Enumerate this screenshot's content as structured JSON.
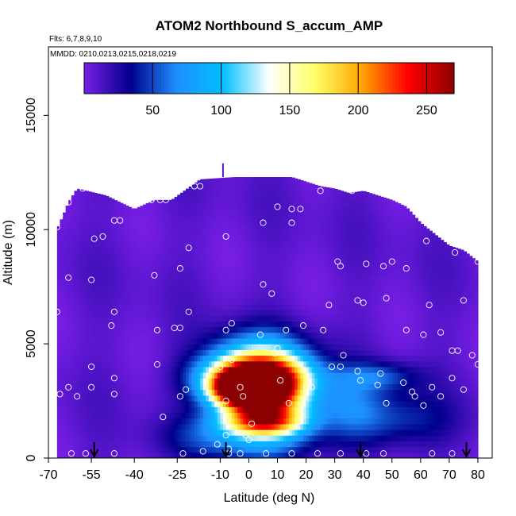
{
  "chart_data": {
    "type": "heatmap",
    "title": "ATOM2 Northbound S_accum_AMP",
    "flights_label": "Flts: 6,7,8,9,10",
    "dates_label": "MMDD: 0210,0213,0215,0218,0219",
    "xlabel": "Latitude (deg N)",
    "ylabel": "Altitude (m)",
    "xlim": [
      -70,
      85
    ],
    "ylim": [
      0,
      18000
    ],
    "x_ticks": [
      "-70",
      "-55",
      "-40",
      "-25",
      "-10",
      "0",
      "10",
      "20",
      "30",
      "40",
      "50",
      "60",
      "70",
      "80"
    ],
    "y_ticks": [
      "0",
      "5000",
      "10000",
      "15000"
    ],
    "colorbar": {
      "range": [
        0,
        270
      ],
      "ticks": [
        "50",
        "100",
        "150",
        "200",
        "250"
      ],
      "colors": [
        "#7a1ee6",
        "#00008b",
        "#1e90ff",
        "#00bfff",
        "#ffffff",
        "#ffff66",
        "#ffa500",
        "#ff0000",
        "#8b0000"
      ]
    },
    "curtain_top": [
      [
        -67,
        10000
      ],
      [
        -63,
        11200
      ],
      [
        -60,
        11800
      ],
      [
        -50,
        11500
      ],
      [
        -40,
        10900
      ],
      [
        -33,
        11300
      ],
      [
        -27,
        11300
      ],
      [
        -17,
        12200
      ],
      [
        -5,
        12300
      ],
      [
        5,
        12300
      ],
      [
        15,
        12300
      ],
      [
        25,
        11900
      ],
      [
        30,
        11800
      ],
      [
        35,
        11600
      ],
      [
        40,
        11700
      ],
      [
        50,
        11300
      ],
      [
        55,
        11000
      ],
      [
        60,
        10300
      ],
      [
        65,
        9800
      ],
      [
        70,
        9300
      ],
      [
        75,
        9100
      ],
      [
        80,
        8600
      ],
      [
        80,
        8300
      ]
    ],
    "hotspots": [
      {
        "lat": 0,
        "alt": 3200,
        "value": 258,
        "slat": 5,
        "salt": 350
      },
      {
        "lat": -1,
        "alt": 3000,
        "value": 225,
        "slat": 8,
        "salt": 500
      },
      {
        "lat": 2,
        "alt": 3600,
        "value": 175,
        "slat": 12,
        "salt": 600
      },
      {
        "lat": 4,
        "alt": 2500,
        "value": 140,
        "slat": 11,
        "salt": 800
      },
      {
        "lat": 5,
        "alt": 1600,
        "value": 110,
        "slat": 10,
        "salt": 400
      },
      {
        "lat": 2,
        "alt": 4300,
        "value": 95,
        "slat": 12,
        "salt": 900
      },
      {
        "lat": -3,
        "alt": 900,
        "value": 60,
        "slat": 16,
        "salt": 700
      },
      {
        "lat": 10,
        "alt": 2800,
        "value": 80,
        "slat": 10,
        "salt": 1300
      },
      {
        "lat": 45,
        "alt": 3600,
        "value": 42,
        "slat": 10,
        "salt": 450
      },
      {
        "lat": 50,
        "alt": 1700,
        "value": 40,
        "slat": 14,
        "salt": 900
      },
      {
        "lat": 35,
        "alt": 2400,
        "value": 35,
        "slat": 8,
        "salt": 1000
      }
    ],
    "sample_points": [
      [
        -67,
        10100
      ],
      [
        -66,
        10600
      ],
      [
        -63,
        11200
      ],
      [
        -58,
        11800
      ],
      [
        -54,
        9600
      ],
      [
        -51,
        9700
      ],
      [
        -47,
        10400
      ],
      [
        -45,
        10400
      ],
      [
        -37,
        11300
      ],
      [
        -34,
        11300
      ],
      [
        -31,
        11300
      ],
      [
        -29,
        11300
      ],
      [
        -21,
        9200
      ],
      [
        -19,
        11900
      ],
      [
        -17,
        11900
      ],
      [
        -8,
        9700
      ],
      [
        5,
        10300
      ],
      [
        10,
        11000
      ],
      [
        15,
        10300
      ],
      [
        15,
        10900
      ],
      [
        18,
        10900
      ],
      [
        25,
        11700
      ],
      [
        36,
        11700
      ],
      [
        50,
        8600
      ],
      [
        55,
        8300
      ],
      [
        62,
        9500
      ],
      [
        72,
        9000
      ],
      [
        80,
        8600
      ],
      [
        -63,
        7900
      ],
      [
        -55,
        7800
      ],
      [
        -47,
        6400
      ],
      [
        -48,
        5800
      ],
      [
        -32,
        5600
      ],
      [
        -33,
        8000
      ],
      [
        -24,
        8300
      ],
      [
        -24,
        5700
      ],
      [
        -21,
        6400
      ],
      [
        -8,
        5600
      ],
      [
        -6,
        5900
      ],
      [
        4,
        5400
      ],
      [
        5,
        7600
      ],
      [
        8,
        7200
      ],
      [
        10,
        4800
      ],
      [
        13,
        5600
      ],
      [
        19,
        5800
      ],
      [
        26,
        5600
      ],
      [
        28,
        6700
      ],
      [
        31,
        8600
      ],
      [
        32,
        8400
      ],
      [
        38,
        6900
      ],
      [
        40,
        6800
      ],
      [
        41,
        8500
      ],
      [
        47,
        8400
      ],
      [
        48,
        7000
      ],
      [
        55,
        5600
      ],
      [
        61,
        5400
      ],
      [
        63,
        6700
      ],
      [
        67,
        5500
      ],
      [
        71,
        4700
      ],
      [
        73,
        4700
      ],
      [
        75,
        6900
      ],
      [
        78,
        4500
      ],
      [
        80,
        4100
      ],
      [
        -67,
        6400
      ],
      [
        -68,
        2800
      ],
      [
        -66,
        2800
      ],
      [
        -63,
        3100
      ],
      [
        -60,
        2700
      ],
      [
        -55,
        3100
      ],
      [
        -47,
        3500
      ],
      [
        -47,
        2800
      ],
      [
        -32,
        4100
      ],
      [
        -22,
        3000
      ],
      [
        -24,
        2700
      ],
      [
        -10,
        4000
      ],
      [
        -8,
        2500
      ],
      [
        -6,
        4300
      ],
      [
        -3,
        3100
      ],
      [
        -2,
        2700
      ],
      [
        1,
        1500
      ],
      [
        9,
        4600
      ],
      [
        11,
        3400
      ],
      [
        14,
        2400
      ],
      [
        20,
        3100
      ],
      [
        22,
        3100
      ],
      [
        29,
        4000
      ],
      [
        32,
        4000
      ],
      [
        33,
        4500
      ],
      [
        38,
        3800
      ],
      [
        39,
        3400
      ],
      [
        45,
        3200
      ],
      [
        46,
        3700
      ],
      [
        48,
        2400
      ],
      [
        54,
        3300
      ],
      [
        57,
        2900
      ],
      [
        58,
        2700
      ],
      [
        61,
        2300
      ],
      [
        64,
        3100
      ],
      [
        67,
        2700
      ],
      [
        71,
        3500
      ],
      [
        75,
        3000
      ],
      [
        -8,
        1000
      ],
      [
        -1,
        1000
      ],
      [
        0,
        800
      ],
      [
        -7,
        400
      ],
      [
        -11,
        600
      ],
      [
        -3,
        200
      ],
      [
        -62,
        200
      ],
      [
        -57,
        200
      ],
      [
        -47,
        200
      ],
      [
        -23,
        200
      ],
      [
        -16,
        300
      ],
      [
        -7,
        200
      ],
      [
        6,
        200
      ],
      [
        15,
        200
      ],
      [
        24,
        200
      ],
      [
        32,
        200
      ],
      [
        41,
        200
      ],
      [
        47,
        200
      ],
      [
        64,
        200
      ],
      [
        71,
        200
      ],
      [
        -55,
        4000
      ],
      [
        -30,
        1800
      ],
      [
        -26,
        5700
      ]
    ],
    "arrows_lat": [
      -54,
      -8,
      39,
      76
    ]
  }
}
